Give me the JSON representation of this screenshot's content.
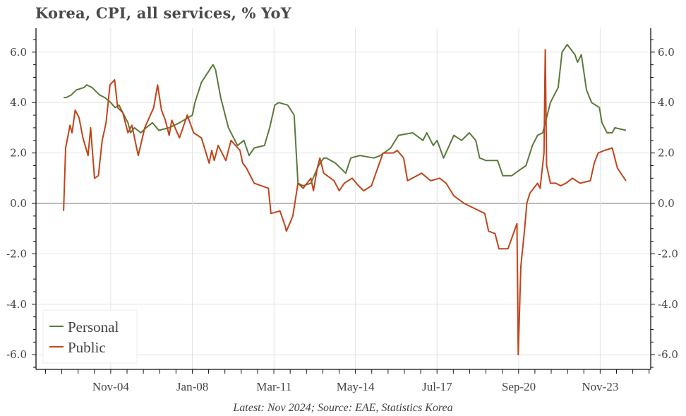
{
  "title": "Korea, CPI, all services, % YoY",
  "source": "Latest: Nov 2024; Source: EAE, Statistics Korea",
  "legend": [
    {
      "label": "Personal",
      "color": "#5a7a3a"
    },
    {
      "label": "Public",
      "color": "#c0441a"
    }
  ],
  "chart_data": {
    "type": "line",
    "title": "Korea, CPI, all services, % YoY",
    "xlabel": "",
    "ylabel": "",
    "ylim": [
      -6.5,
      6.9
    ],
    "yticks": [
      -6.0,
      -4.0,
      -2.0,
      0.0,
      2.0,
      4.0,
      6.0
    ],
    "ytick_labels": [
      "-6.0",
      "-4.0",
      "-2.0",
      "0.0",
      "2.0",
      "4.0",
      "6.0"
    ],
    "dual_y_axis_mirrored": true,
    "xlim": [
      2001.2,
      2025.9
    ],
    "xticks": [
      2004.83,
      2008.0,
      2011.17,
      2014.33,
      2017.5,
      2020.67,
      2023.83
    ],
    "xtick_labels": [
      "Nov-04",
      "Jan-08",
      "Mar-11",
      "May-14",
      "Jul-17",
      "Sep-20",
      "Nov-23"
    ],
    "grid": true,
    "legend_position": "lower left",
    "x_units": "decimal year",
    "series": [
      {
        "name": "Personal",
        "color": "#5a7a3a",
        "points": [
          [
            2003.0,
            4.2
          ],
          [
            2003.1,
            4.2
          ],
          [
            2003.3,
            4.3
          ],
          [
            2003.5,
            4.5
          ],
          [
            2003.8,
            4.6
          ],
          [
            2003.9,
            4.7
          ],
          [
            2004.1,
            4.6
          ],
          [
            2004.4,
            4.3
          ],
          [
            2004.6,
            4.2
          ],
          [
            2004.83,
            4.0
          ],
          [
            2005.0,
            3.8
          ],
          [
            2005.15,
            3.9
          ],
          [
            2005.5,
            3.2
          ],
          [
            2005.6,
            2.8
          ],
          [
            2005.75,
            3.0
          ],
          [
            2006.0,
            2.8
          ],
          [
            2006.2,
            3.0
          ],
          [
            2006.45,
            3.2
          ],
          [
            2006.7,
            2.9
          ],
          [
            2007.1,
            3.0
          ],
          [
            2007.5,
            3.2
          ],
          [
            2008.0,
            3.5
          ],
          [
            2008.1,
            4.0
          ],
          [
            2008.35,
            4.8
          ],
          [
            2008.8,
            5.5
          ],
          [
            2008.9,
            5.3
          ],
          [
            2009.1,
            4.2
          ],
          [
            2009.4,
            3.0
          ],
          [
            2009.75,
            2.3
          ],
          [
            2010.0,
            2.5
          ],
          [
            2010.2,
            1.9
          ],
          [
            2010.4,
            2.2
          ],
          [
            2010.8,
            2.3
          ],
          [
            2011.0,
            3.0
          ],
          [
            2011.2,
            3.9
          ],
          [
            2011.35,
            4.0
          ],
          [
            2011.7,
            3.9
          ],
          [
            2011.95,
            3.5
          ],
          [
            2012.1,
            0.8
          ],
          [
            2012.3,
            0.7
          ],
          [
            2012.6,
            0.8
          ],
          [
            2012.9,
            1.5
          ],
          [
            2013.1,
            1.8
          ],
          [
            2013.2,
            1.8
          ],
          [
            2013.55,
            1.6
          ],
          [
            2013.95,
            1.2
          ],
          [
            2014.15,
            1.8
          ],
          [
            2014.5,
            1.9
          ],
          [
            2015.05,
            1.8
          ],
          [
            2015.3,
            1.9
          ],
          [
            2015.7,
            2.2
          ],
          [
            2016.0,
            2.7
          ],
          [
            2016.55,
            2.8
          ],
          [
            2016.95,
            2.5
          ],
          [
            2017.1,
            2.8
          ],
          [
            2017.35,
            2.3
          ],
          [
            2017.5,
            2.5
          ],
          [
            2017.75,
            1.8
          ],
          [
            2018.15,
            2.7
          ],
          [
            2018.45,
            2.5
          ],
          [
            2018.75,
            2.8
          ],
          [
            2019.0,
            2.5
          ],
          [
            2019.15,
            1.8
          ],
          [
            2019.4,
            1.7
          ],
          [
            2019.85,
            1.7
          ],
          [
            2020.05,
            1.1
          ],
          [
            2020.4,
            1.1
          ],
          [
            2020.67,
            1.3
          ],
          [
            2020.95,
            1.5
          ],
          [
            2021.2,
            2.3
          ],
          [
            2021.4,
            2.7
          ],
          [
            2021.6,
            2.8
          ],
          [
            2021.9,
            4.0
          ],
          [
            2022.2,
            4.6
          ],
          [
            2022.35,
            6.0
          ],
          [
            2022.55,
            6.3
          ],
          [
            2022.85,
            5.9
          ],
          [
            2022.95,
            5.6
          ],
          [
            2023.1,
            5.9
          ],
          [
            2023.3,
            4.5
          ],
          [
            2023.5,
            4.0
          ],
          [
            2023.8,
            3.8
          ],
          [
            2023.9,
            3.2
          ],
          [
            2024.1,
            2.8
          ],
          [
            2024.3,
            2.8
          ],
          [
            2024.4,
            3.0
          ],
          [
            2024.83,
            2.9
          ]
        ]
      },
      {
        "name": "Public",
        "color": "#c0441a",
        "points": [
          [
            2003.0,
            -0.3
          ],
          [
            2003.08,
            2.2
          ],
          [
            2003.25,
            3.1
          ],
          [
            2003.33,
            2.8
          ],
          [
            2003.45,
            3.7
          ],
          [
            2003.6,
            3.4
          ],
          [
            2003.75,
            2.6
          ],
          [
            2003.95,
            1.9
          ],
          [
            2004.05,
            3.0
          ],
          [
            2004.2,
            1.0
          ],
          [
            2004.35,
            1.1
          ],
          [
            2004.5,
            2.5
          ],
          [
            2004.65,
            3.2
          ],
          [
            2004.8,
            4.7
          ],
          [
            2004.98,
            4.9
          ],
          [
            2005.1,
            3.8
          ],
          [
            2005.3,
            3.6
          ],
          [
            2005.5,
            2.8
          ],
          [
            2005.65,
            3.1
          ],
          [
            2005.9,
            1.9
          ],
          [
            2006.15,
            3.0
          ],
          [
            2006.5,
            3.8
          ],
          [
            2006.65,
            4.7
          ],
          [
            2006.8,
            3.7
          ],
          [
            2006.95,
            3.3
          ],
          [
            2007.1,
            2.7
          ],
          [
            2007.2,
            3.3
          ],
          [
            2007.5,
            2.6
          ],
          [
            2007.8,
            3.5
          ],
          [
            2008.05,
            2.8
          ],
          [
            2008.35,
            2.6
          ],
          [
            2008.65,
            1.6
          ],
          [
            2008.75,
            2.1
          ],
          [
            2008.85,
            1.7
          ],
          [
            2009.0,
            2.3
          ],
          [
            2009.3,
            1.7
          ],
          [
            2009.5,
            2.5
          ],
          [
            2009.85,
            2.1
          ],
          [
            2009.95,
            1.6
          ],
          [
            2010.1,
            1.4
          ],
          [
            2010.4,
            0.8
          ],
          [
            2010.95,
            0.6
          ],
          [
            2011.05,
            -0.4
          ],
          [
            2011.4,
            -0.3
          ],
          [
            2011.6,
            -0.9
          ],
          [
            2011.65,
            -1.1
          ],
          [
            2011.9,
            -0.5
          ],
          [
            2012.1,
            0.8
          ],
          [
            2012.3,
            0.6
          ],
          [
            2012.6,
            1.0
          ],
          [
            2012.7,
            0.5
          ],
          [
            2012.85,
            1.4
          ],
          [
            2012.95,
            1.8
          ],
          [
            2013.1,
            1.2
          ],
          [
            2013.5,
            0.9
          ],
          [
            2013.7,
            0.5
          ],
          [
            2013.9,
            0.8
          ],
          [
            2014.2,
            1.0
          ],
          [
            2014.45,
            0.7
          ],
          [
            2014.65,
            0.5
          ],
          [
            2014.95,
            0.7
          ],
          [
            2015.4,
            2.0
          ],
          [
            2015.8,
            2.0
          ],
          [
            2015.95,
            2.1
          ],
          [
            2016.2,
            1.8
          ],
          [
            2016.35,
            0.9
          ],
          [
            2016.9,
            1.2
          ],
          [
            2017.25,
            0.9
          ],
          [
            2017.6,
            1.0
          ],
          [
            2017.85,
            0.8
          ],
          [
            2018.15,
            0.3
          ],
          [
            2018.55,
            0.0
          ],
          [
            2018.95,
            -0.2
          ],
          [
            2019.35,
            -0.4
          ],
          [
            2019.5,
            -1.1
          ],
          [
            2019.75,
            -1.2
          ],
          [
            2019.9,
            -1.8
          ],
          [
            2020.25,
            -1.8
          ],
          [
            2020.6,
            -0.8
          ],
          [
            2020.65,
            -6.0
          ],
          [
            2020.75,
            -2.5
          ],
          [
            2020.9,
            -1.0
          ],
          [
            2020.98,
            0.0
          ],
          [
            2021.1,
            0.4
          ],
          [
            2021.4,
            0.8
          ],
          [
            2021.5,
            0.6
          ],
          [
            2021.65,
            2.0
          ],
          [
            2021.7,
            6.1
          ],
          [
            2021.75,
            1.5
          ],
          [
            2021.9,
            0.8
          ],
          [
            2022.1,
            0.8
          ],
          [
            2022.3,
            0.7
          ],
          [
            2022.5,
            0.8
          ],
          [
            2022.75,
            1.0
          ],
          [
            2023.05,
            0.8
          ],
          [
            2023.45,
            0.9
          ],
          [
            2023.6,
            1.6
          ],
          [
            2023.75,
            2.0
          ],
          [
            2024.0,
            2.1
          ],
          [
            2024.3,
            2.2
          ],
          [
            2024.5,
            1.4
          ],
          [
            2024.83,
            0.9
          ]
        ]
      }
    ]
  },
  "colors": {
    "personal": "#5a7a3a",
    "public": "#c0441a",
    "grid": "#e3e3e3",
    "zero_line": "#777777",
    "axis": "#111111",
    "text": "#444444"
  }
}
